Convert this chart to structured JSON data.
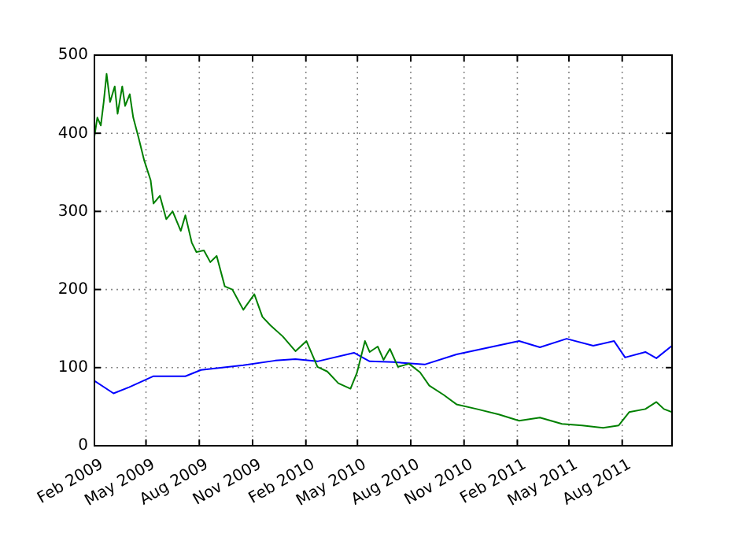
{
  "chart_data": {
    "type": "line",
    "x": [
      "2009-02-01",
      "2009-02-06",
      "2009-02-12",
      "2009-02-17",
      "2009-02-22",
      "2009-02-28",
      "2009-03-08",
      "2009-03-13",
      "2009-03-21",
      "2009-03-26",
      "2009-04-03",
      "2009-04-09",
      "2009-04-18",
      "2009-04-28",
      "2009-05-09",
      "2009-05-14",
      "2009-05-25",
      "2009-06-05",
      "2009-06-16",
      "2009-06-30",
      "2009-07-08",
      "2009-07-19",
      "2009-07-27",
      "2009-08-09",
      "2009-08-20",
      "2009-08-31",
      "2009-09-14",
      "2009-09-27",
      "2009-10-16",
      "2009-11-04",
      "2009-11-18",
      "2009-12-02",
      "2009-12-23",
      "2010-01-14",
      "2010-02-02",
      "2010-02-21",
      "2010-03-10",
      "2010-03-29",
      "2010-04-19",
      "2010-04-30",
      "2010-05-14",
      "2010-05-22",
      "2010-06-05",
      "2010-06-15",
      "2010-06-26",
      "2010-07-10",
      "2010-07-29",
      "2010-08-17",
      "2010-09-02",
      "2010-09-27",
      "2010-10-19",
      "2010-11-23",
      "2010-12-31",
      "2011-02-04",
      "2011-03-12",
      "2011-04-19",
      "2011-05-24",
      "2011-06-29",
      "2011-07-26",
      "2011-08-13",
      "2011-09-10",
      "2011-09-29",
      "2011-10-12",
      "2011-10-26"
    ],
    "xlim": [
      "2009-02-01",
      "2011-10-26"
    ],
    "xticks": [
      {
        "value": "2009-02-01",
        "label": "Feb 2009"
      },
      {
        "value": "2009-05-01",
        "label": "May 2009"
      },
      {
        "value": "2009-08-01",
        "label": "Aug 2009"
      },
      {
        "value": "2009-11-01",
        "label": "Nov 2009"
      },
      {
        "value": "2010-02-01",
        "label": "Feb 2010"
      },
      {
        "value": "2010-05-01",
        "label": "May 2010"
      },
      {
        "value": "2010-08-01",
        "label": "Aug 2010"
      },
      {
        "value": "2010-11-01",
        "label": "Nov 2010"
      },
      {
        "value": "2011-02-01",
        "label": "Feb 2011"
      },
      {
        "value": "2011-05-01",
        "label": "May 2011"
      },
      {
        "value": "2011-08-01",
        "label": "Aug 2011"
      }
    ],
    "ylim": [
      0,
      500
    ],
    "yticks": [
      0,
      100,
      200,
      300,
      400,
      500
    ],
    "grid": true,
    "line_style": "solid",
    "marker": "none",
    "series": [
      {
        "color": "#0000ff",
        "x": [
          "2009-02-01",
          "2009-03-06",
          "2009-04-02",
          "2009-05-14",
          "2009-07-08",
          "2009-08-04",
          "2009-10-16",
          "2009-12-10",
          "2010-01-14",
          "2010-02-21",
          "2010-04-25",
          "2010-05-22",
          "2010-07-02",
          "2010-08-25",
          "2010-10-19",
          "2011-02-04",
          "2011-03-12",
          "2011-04-27",
          "2011-06-12",
          "2011-07-18",
          "2011-08-06",
          "2011-09-10",
          "2011-09-29",
          "2011-10-26"
        ],
        "values": [
          83,
          67,
          75,
          89,
          89,
          97,
          103,
          109,
          111,
          108,
          119,
          108,
          107,
          104,
          117,
          134,
          126,
          137,
          128,
          134,
          113,
          120,
          112,
          128
        ]
      },
      {
        "color": "#008000",
        "values": [
          396,
          420,
          410,
          440,
          476,
          440,
          460,
          425,
          460,
          435,
          450,
          420,
          395,
          365,
          340,
          310,
          320,
          290,
          300,
          275,
          295,
          260,
          248,
          250,
          235,
          243,
          204,
          200,
          174,
          194,
          165,
          154,
          140,
          121,
          134,
          101,
          95,
          80,
          73,
          93,
          134,
          120,
          127,
          110,
          124,
          101,
          105,
          94,
          77,
          65,
          53,
          47,
          40,
          32,
          36,
          28,
          26,
          23,
          26,
          43,
          47,
          56,
          47,
          43
        ]
      }
    ]
  }
}
